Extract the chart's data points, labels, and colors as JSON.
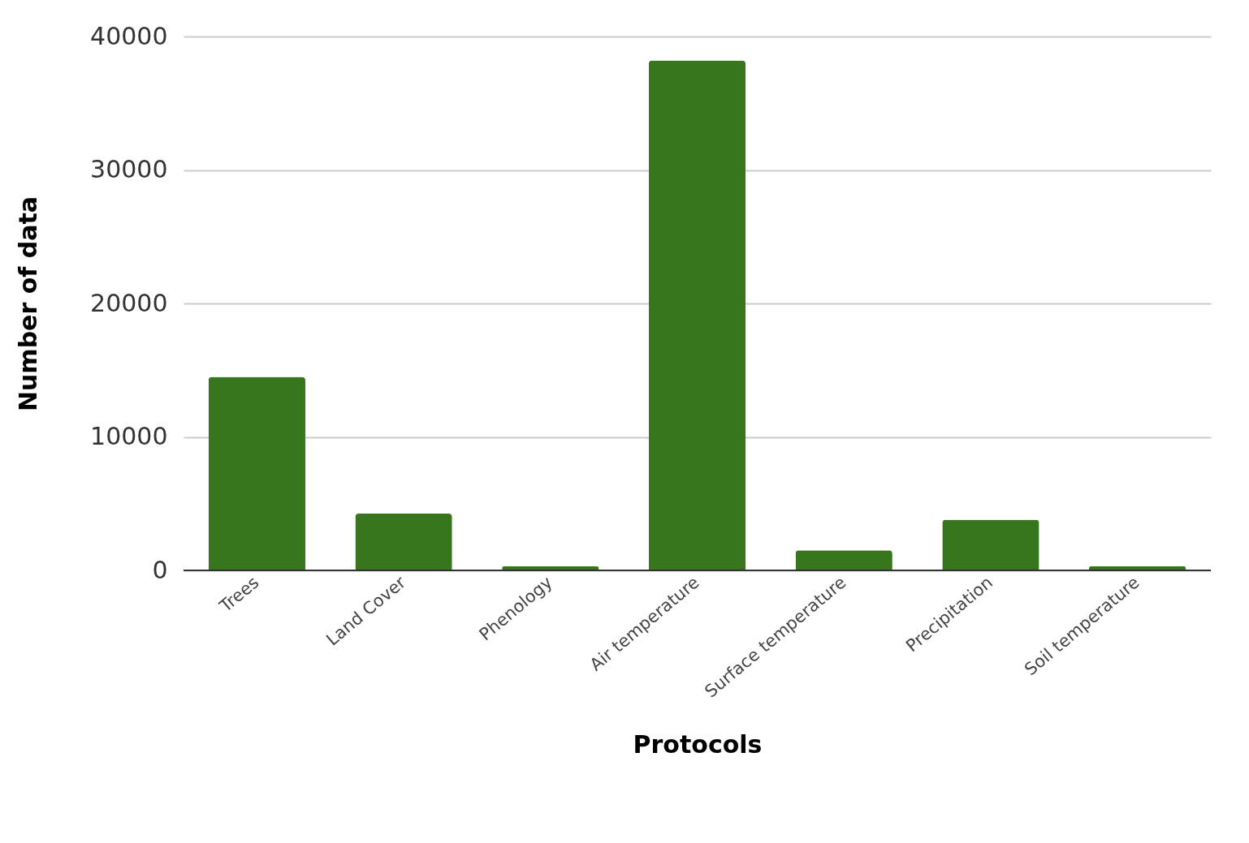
{
  "chart_data": {
    "type": "bar",
    "xlabel": "Protocols",
    "ylabel": "Number of data",
    "categories": [
      "Trees",
      "Land Cover",
      "Phenology",
      "Air temperature",
      "Surface temperature",
      "Precipitation",
      "Soil temperature"
    ],
    "values": [
      14500,
      4250,
      300,
      38200,
      1500,
      3800,
      300
    ],
    "color": "#38761d",
    "ylim": [
      0,
      40000
    ],
    "yticks": [
      0,
      10000,
      20000,
      30000,
      40000
    ],
    "grid": "y"
  }
}
